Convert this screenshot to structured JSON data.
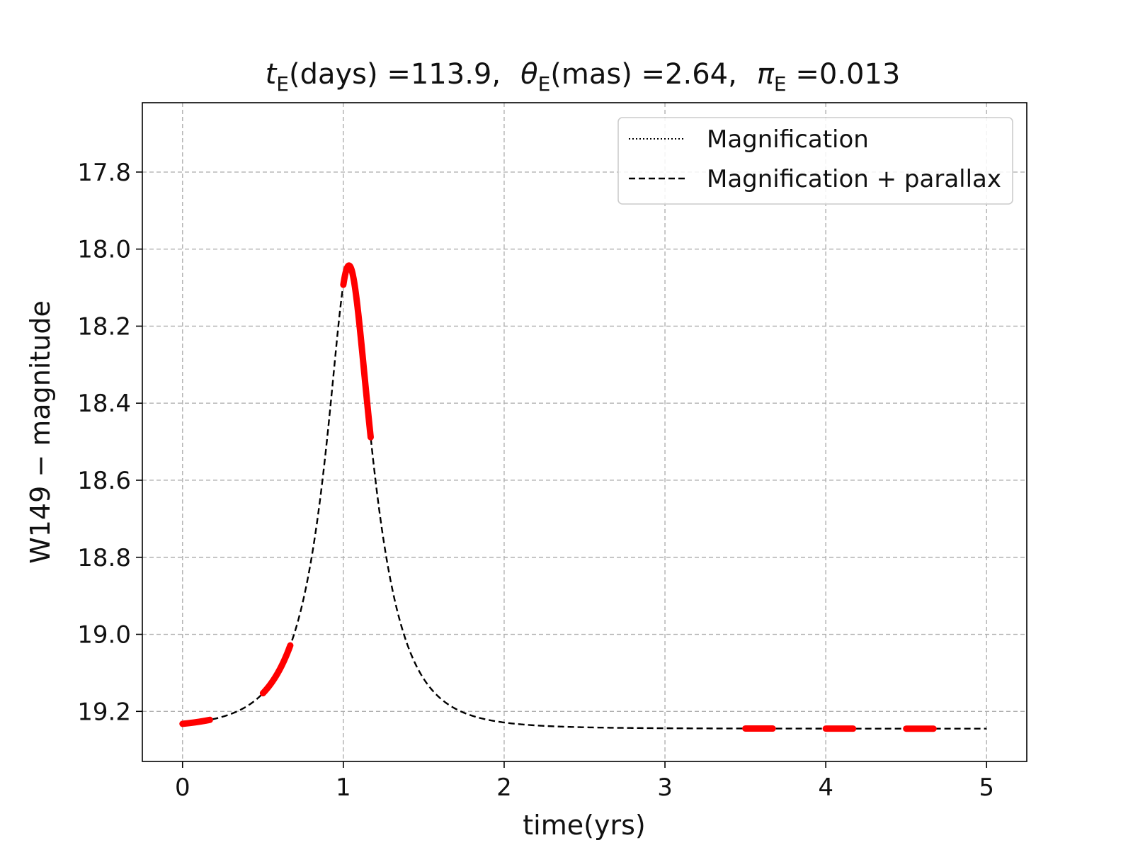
{
  "chart_data": {
    "type": "line",
    "title": {
      "t_label": "t",
      "t_sub": "E",
      "t_rest": "(days) =113.9,",
      "theta_label": "θ",
      "theta_sub": "E",
      "theta_rest": "(mas) =2.64,",
      "pi_label": "π",
      "pi_sub": "E",
      "pi_rest": " =0.013"
    },
    "xlabel": "time(yrs)",
    "ylabel": "W149 − magnitude",
    "xlim": [
      -0.25,
      5.25
    ],
    "ylim": [
      19.33,
      17.62
    ],
    "y_inverted": true,
    "grid": true,
    "x_ticks": [
      0,
      1,
      2,
      3,
      4,
      5
    ],
    "x_tick_labels": [
      "0",
      "1",
      "2",
      "3",
      "4",
      "5"
    ],
    "y_ticks": [
      17.8,
      18.0,
      18.2,
      18.4,
      18.6,
      18.8,
      19.0,
      19.2
    ],
    "y_tick_labels": [
      "17.8",
      "18.0",
      "18.2",
      "18.4",
      "18.6",
      "18.8",
      "19.0",
      "19.2"
    ],
    "legend": {
      "location": "top-right",
      "entries": [
        {
          "label": "Magnification",
          "style": "dotted"
        },
        {
          "label": "Magnification + parallax",
          "style": "dashed"
        }
      ]
    },
    "model": {
      "t0_yrs": 1.035,
      "tE_yrs": 0.3118,
      "u0": 0.345,
      "baseline_mag": 19.245,
      "blend_fraction": 1.0,
      "t_start": 0.0,
      "t_end": 5.0,
      "color": "#000000"
    },
    "observation_windows": [
      {
        "start": 0.0,
        "end": 0.17
      },
      {
        "start": 0.5,
        "end": 0.67
      },
      {
        "start": 1.0,
        "end": 1.17
      },
      {
        "start": 3.5,
        "end": 3.67
      },
      {
        "start": 4.0,
        "end": 4.17
      },
      {
        "start": 4.5,
        "end": 4.67
      }
    ],
    "observation_color": "#ff0000"
  }
}
